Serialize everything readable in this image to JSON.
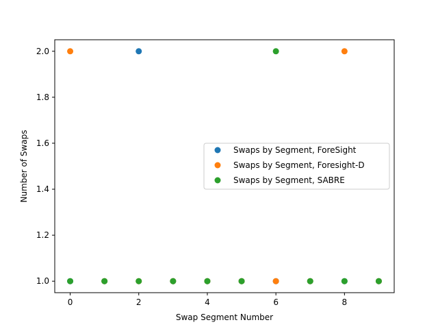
{
  "chart_data": {
    "type": "scatter",
    "title": "",
    "xlabel": "Swap Segment Number",
    "ylabel": "Number of Swaps",
    "xlim": [
      -0.45,
      9.45
    ],
    "ylim": [
      0.95,
      2.05
    ],
    "xticks": [
      0,
      2,
      4,
      6,
      8
    ],
    "yticks": [
      1.0,
      1.2,
      1.4,
      1.6,
      1.8,
      2.0
    ],
    "xtick_labels": [
      "0",
      "2",
      "4",
      "6",
      "8"
    ],
    "ytick_labels": [
      "1.0",
      "1.2",
      "1.4",
      "1.6",
      "1.8",
      "2.0"
    ],
    "grid": false,
    "legend_position": "center-right",
    "series": [
      {
        "name": "Swaps by Segment, ForeSight",
        "color": "#1f77b4",
        "x": [
          0,
          1,
          2,
          3,
          4,
          5,
          6,
          7,
          8,
          9
        ],
        "y": [
          1,
          1,
          2,
          1,
          1,
          1,
          1,
          1,
          1,
          1
        ]
      },
      {
        "name": "Swaps by Segment, Foresight-D",
        "color": "#ff7f0e",
        "x": [
          0,
          1,
          2,
          3,
          4,
          5,
          6,
          7,
          8,
          9
        ],
        "y": [
          2,
          1,
          1,
          1,
          1,
          1,
          1,
          1,
          2,
          1
        ]
      },
      {
        "name": "Swaps by Segment, SABRE",
        "color": "#2ca02c",
        "x": [
          0,
          1,
          2,
          3,
          4,
          5,
          6,
          7,
          8,
          9
        ],
        "y": [
          1,
          1,
          1,
          1,
          1,
          1,
          2,
          1,
          1,
          1
        ]
      }
    ]
  }
}
